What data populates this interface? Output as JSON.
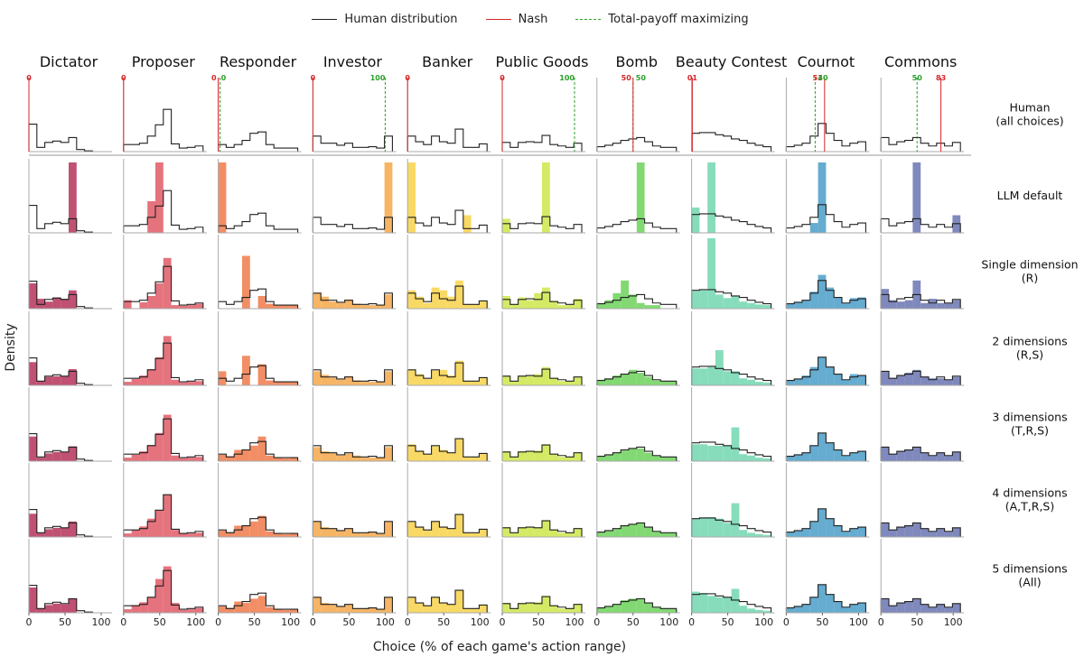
{
  "legend": [
    {
      "label": "Human distribution",
      "color": "#222222",
      "style": "solid"
    },
    {
      "label": "Nash",
      "color": "#d62728",
      "style": "solid"
    },
    {
      "label": "Total-payoff maximizing",
      "color": "#2ca02c",
      "style": "dashed"
    }
  ],
  "axis": {
    "xlabel": "Choice (% of each game's action range)",
    "ylabel": "Density",
    "xticks": [
      "0",
      "50",
      "100"
    ]
  },
  "chart_data": {
    "type": "histogram-grid",
    "bins": 10,
    "games": [
      {
        "name": "Dictator",
        "color": "#b5325a",
        "human": [
          0.39,
          0.06,
          0.13,
          0.15,
          0.13,
          0.2,
          0.03,
          0.01,
          0.0,
          0.0
        ],
        "nash": {
          "value": 0,
          "label": "0"
        },
        "maxpay": null,
        "rows": [
          [
            0,
            0,
            0,
            0,
            0,
            1.0,
            0,
            0,
            0,
            0
          ],
          [
            0.36,
            0.14,
            0.1,
            0.16,
            0.14,
            0.26,
            0,
            0,
            0,
            0
          ],
          [
            0.33,
            0.06,
            0.12,
            0.13,
            0.13,
            0.23,
            0,
            0,
            0,
            0
          ],
          [
            0.35,
            0.05,
            0.11,
            0.13,
            0.13,
            0.21,
            0,
            0,
            0,
            0
          ],
          [
            0.33,
            0.06,
            0.11,
            0.13,
            0.13,
            0.22,
            0,
            0,
            0,
            0
          ],
          [
            0.36,
            0.06,
            0.11,
            0.13,
            0.12,
            0.2,
            0,
            0,
            0,
            0
          ]
        ]
      },
      {
        "name": "Proposer",
        "color": "#e05a66",
        "human": [
          0.1,
          0.1,
          0.12,
          0.22,
          0.38,
          0.6,
          0.11,
          0.05,
          0.06,
          0.08
        ],
        "nash": {
          "value": 0,
          "label": "0"
        },
        "maxpay": null,
        "rows": [
          [
            0,
            0,
            0,
            0.45,
            1.0,
            0,
            0,
            0,
            0,
            0
          ],
          [
            0.12,
            0,
            0.09,
            0.18,
            0.36,
            0.72,
            0.05,
            0.04,
            0.05,
            0.07
          ],
          [
            0.05,
            0.09,
            0.14,
            0.23,
            0.4,
            0.7,
            0.08,
            0.04,
            0.05,
            0.06
          ],
          [
            0.05,
            0.09,
            0.14,
            0.23,
            0.4,
            0.66,
            0.08,
            0.04,
            0.05,
            0.06
          ],
          [
            0.05,
            0.1,
            0.15,
            0.26,
            0.38,
            0.6,
            0.1,
            0.05,
            0.05,
            0.06
          ],
          [
            0.05,
            0.11,
            0.15,
            0.22,
            0.48,
            0.66,
            0.14,
            0.04,
            0.05,
            0.07
          ]
        ]
      },
      {
        "name": "Responder",
        "color": "#f07a4a",
        "human": [
          0.1,
          0.06,
          0.1,
          0.16,
          0.26,
          0.28,
          0.1,
          0.05,
          0.05,
          0.05
        ],
        "nash": {
          "value": 0,
          "label": "0"
        },
        "maxpay": {
          "value": 0,
          "label": "0"
        },
        "rows": [
          [
            1.0,
            0,
            0,
            0,
            0,
            0,
            0,
            0,
            0,
            0
          ],
          [
            0,
            0,
            0,
            0.75,
            0,
            0.18,
            0.07,
            0.05,
            0.05,
            0.05
          ],
          [
            0.2,
            0,
            0,
            0.42,
            0,
            0.3,
            0.07,
            0.05,
            0.05,
            0.05
          ],
          [
            0.09,
            0.07,
            0.16,
            0.16,
            0.22,
            0.35,
            0.08,
            0.05,
            0.04,
            0.05
          ],
          [
            0.09,
            0.07,
            0.16,
            0.16,
            0.22,
            0.3,
            0.08,
            0.05,
            0.04,
            0.05
          ],
          [
            0.09,
            0.07,
            0.16,
            0.14,
            0.2,
            0.24,
            0.08,
            0.05,
            0.04,
            0.05
          ]
        ]
      },
      {
        "name": "Investor",
        "color": "#f5a84a",
        "human": [
          0.22,
          0.12,
          0.12,
          0.09,
          0.12,
          0.06,
          0.06,
          0.07,
          0.05,
          0.22
        ],
        "nash": {
          "value": 0,
          "label": "0"
        },
        "maxpay": {
          "value": 100,
          "label": "100"
        },
        "rows": [
          [
            0,
            0,
            0,
            0,
            0,
            0,
            0,
            0,
            0,
            1.0
          ],
          [
            0.22,
            0.17,
            0.1,
            0.08,
            0.13,
            0.07,
            0.05,
            0.05,
            0.05,
            0.2
          ],
          [
            0.2,
            0.15,
            0.11,
            0.08,
            0.13,
            0.07,
            0.05,
            0.05,
            0.05,
            0.2
          ],
          [
            0.2,
            0.14,
            0.12,
            0.08,
            0.11,
            0.08,
            0.05,
            0.05,
            0.05,
            0.2
          ],
          [
            0.22,
            0.14,
            0.12,
            0.09,
            0.12,
            0.06,
            0.06,
            0.07,
            0.05,
            0.22
          ],
          [
            0.22,
            0.14,
            0.12,
            0.09,
            0.12,
            0.06,
            0.06,
            0.07,
            0.05,
            0.22
          ]
        ]
      },
      {
        "name": "Banker",
        "color": "#f7d24a",
        "human": [
          0.22,
          0.14,
          0.1,
          0.22,
          0.14,
          0.12,
          0.32,
          0.06,
          0.06,
          0.11
        ],
        "nash": {
          "value": 0,
          "label": "0"
        },
        "maxpay": null,
        "rows": [
          [
            1.0,
            0,
            0,
            0,
            0,
            0,
            0,
            0.25,
            0,
            0
          ],
          [
            0.26,
            0.17,
            0.08,
            0.3,
            0.26,
            0.17,
            0.4,
            0.06,
            0.06,
            0.11
          ],
          [
            0.22,
            0.16,
            0.09,
            0.21,
            0.22,
            0.14,
            0.35,
            0.06,
            0.06,
            0.11
          ],
          [
            0.24,
            0.15,
            0.1,
            0.21,
            0.16,
            0.12,
            0.32,
            0.06,
            0.06,
            0.11
          ],
          [
            0.22,
            0.14,
            0.1,
            0.22,
            0.14,
            0.12,
            0.32,
            0.06,
            0.06,
            0.11
          ],
          [
            0.22,
            0.14,
            0.1,
            0.22,
            0.14,
            0.12,
            0.32,
            0.06,
            0.06,
            0.11
          ]
        ]
      },
      {
        "name": "Public Goods",
        "color": "#cde64a",
        "human": [
          0.13,
          0.06,
          0.13,
          0.14,
          0.13,
          0.23,
          0.1,
          0.08,
          0.06,
          0.12
        ],
        "nash": {
          "value": 0,
          "label": "0"
        },
        "maxpay": {
          "value": 100,
          "label": "100"
        },
        "rows": [
          [
            0.2,
            0,
            0,
            0,
            0,
            1.0,
            0,
            0,
            0,
            0
          ],
          [
            0.18,
            0.06,
            0.16,
            0.12,
            0.22,
            0.3,
            0.11,
            0.05,
            0.05,
            0.14
          ],
          [
            0.14,
            0.06,
            0.14,
            0.14,
            0.16,
            0.26,
            0.1,
            0.06,
            0.06,
            0.12
          ],
          [
            0.14,
            0.06,
            0.14,
            0.14,
            0.15,
            0.24,
            0.1,
            0.06,
            0.06,
            0.12
          ],
          [
            0.14,
            0.06,
            0.14,
            0.14,
            0.14,
            0.24,
            0.1,
            0.06,
            0.06,
            0.12
          ],
          [
            0.14,
            0.06,
            0.14,
            0.14,
            0.15,
            0.24,
            0.1,
            0.06,
            0.06,
            0.12
          ]
        ]
      },
      {
        "name": "Bomb",
        "color": "#6cd25a",
        "human": [
          0.07,
          0.09,
          0.12,
          0.16,
          0.18,
          0.2,
          0.14,
          0.08,
          0.06,
          0.06
        ],
        "nash": {
          "value": 50,
          "label": "50"
        },
        "maxpay": {
          "value": 50,
          "label": "50"
        },
        "rows": [
          [
            0,
            0,
            0,
            0,
            0,
            1.0,
            0,
            0,
            0,
            0
          ],
          [
            0.08,
            0.12,
            0.22,
            0.4,
            0.2,
            0.08,
            0.05,
            0.05,
            0,
            0
          ],
          [
            0.08,
            0.1,
            0.14,
            0.16,
            0.22,
            0.18,
            0.12,
            0.07,
            0.06,
            0.06
          ],
          [
            0.07,
            0.09,
            0.12,
            0.15,
            0.18,
            0.18,
            0.12,
            0.08,
            0.06,
            0.06
          ],
          [
            0.07,
            0.09,
            0.12,
            0.16,
            0.18,
            0.2,
            0.14,
            0.08,
            0.06,
            0.06
          ],
          [
            0.07,
            0.09,
            0.12,
            0.18,
            0.2,
            0.2,
            0.14,
            0.08,
            0.06,
            0.06
          ]
        ]
      },
      {
        "name": "Beauty Contest",
        "color": "#72d6b0",
        "human": [
          0.26,
          0.27,
          0.27,
          0.24,
          0.22,
          0.18,
          0.16,
          0.12,
          0.09,
          0.07
        ],
        "nash": {
          "value": 1,
          "label": "01"
        },
        "maxpay": null,
        "rows": [
          [
            0.36,
            0,
            1.0,
            0,
            0,
            0,
            0,
            0,
            0,
            0
          ],
          [
            0.25,
            0.26,
            1.0,
            0.2,
            0.15,
            0.18,
            0.1,
            0.08,
            0.06,
            0.05
          ],
          [
            0.24,
            0.24,
            0.26,
            0.5,
            0.2,
            0.2,
            0.1,
            0.08,
            0.05,
            0.04
          ],
          [
            0.24,
            0.24,
            0.22,
            0.22,
            0.22,
            0.48,
            0.1,
            0.08,
            0.05,
            0.04
          ],
          [
            0.26,
            0.28,
            0.28,
            0.26,
            0.2,
            0.48,
            0.1,
            0.06,
            0.04,
            0.03
          ],
          [
            0.3,
            0.28,
            0.24,
            0.22,
            0.22,
            0.34,
            0.1,
            0.06,
            0.04,
            0.03
          ]
        ]
      },
      {
        "name": "Cournot",
        "color": "#4a9ec8",
        "human": [
          0.07,
          0.09,
          0.12,
          0.22,
          0.4,
          0.26,
          0.16,
          0.08,
          0.12,
          0.14
        ],
        "nash": {
          "value": 53,
          "label": "53"
        },
        "maxpay": {
          "value": 40,
          "label": "40"
        },
        "rows": [
          [
            0,
            0,
            0,
            0.14,
            1.0,
            0,
            0,
            0,
            0,
            0
          ],
          [
            0.07,
            0.09,
            0.12,
            0.24,
            0.48,
            0.3,
            0.16,
            0.08,
            0.15,
            0.16
          ],
          [
            0.07,
            0.09,
            0.14,
            0.26,
            0.4,
            0.26,
            0.16,
            0.08,
            0.16,
            0.14
          ],
          [
            0.07,
            0.09,
            0.12,
            0.22,
            0.4,
            0.26,
            0.16,
            0.08,
            0.12,
            0.14
          ],
          [
            0.07,
            0.09,
            0.12,
            0.22,
            0.4,
            0.26,
            0.16,
            0.08,
            0.12,
            0.14
          ],
          [
            0.07,
            0.09,
            0.12,
            0.22,
            0.4,
            0.26,
            0.16,
            0.08,
            0.12,
            0.14
          ]
        ]
      },
      {
        "name": "Commons",
        "color": "#6a74b2",
        "human": [
          0.2,
          0.1,
          0.14,
          0.16,
          0.2,
          0.12,
          0.08,
          0.12,
          0.08,
          0.13
        ],
        "nash": {
          "value": 83,
          "label": "83"
        },
        "maxpay": {
          "value": 50,
          "label": "50"
        },
        "rows": [
          [
            0,
            0,
            0,
            0,
            1.0,
            0,
            0,
            0,
            0,
            0.25
          ],
          [
            0.28,
            0.12,
            0.1,
            0.12,
            0.4,
            0.08,
            0.14,
            0.08,
            0.08,
            0.12
          ],
          [
            0.2,
            0.1,
            0.14,
            0.18,
            0.22,
            0.12,
            0.1,
            0.1,
            0.08,
            0.12
          ],
          [
            0.2,
            0.1,
            0.14,
            0.16,
            0.2,
            0.12,
            0.08,
            0.12,
            0.08,
            0.13
          ],
          [
            0.2,
            0.1,
            0.14,
            0.16,
            0.2,
            0.12,
            0.08,
            0.12,
            0.08,
            0.13
          ],
          [
            0.2,
            0.1,
            0.14,
            0.16,
            0.2,
            0.12,
            0.08,
            0.12,
            0.08,
            0.13
          ]
        ]
      }
    ],
    "row_labels": [
      [
        "Human",
        "(all choices)"
      ],
      [
        "LLM default"
      ],
      [
        "Single dimension",
        "(R)"
      ],
      [
        "2 dimensions",
        "(R,S)"
      ],
      [
        "3 dimensions",
        "(T,R,S)"
      ],
      [
        "4 dimensions",
        "(A,T,R,S)"
      ],
      [
        "5 dimensions",
        "(All)"
      ]
    ]
  }
}
